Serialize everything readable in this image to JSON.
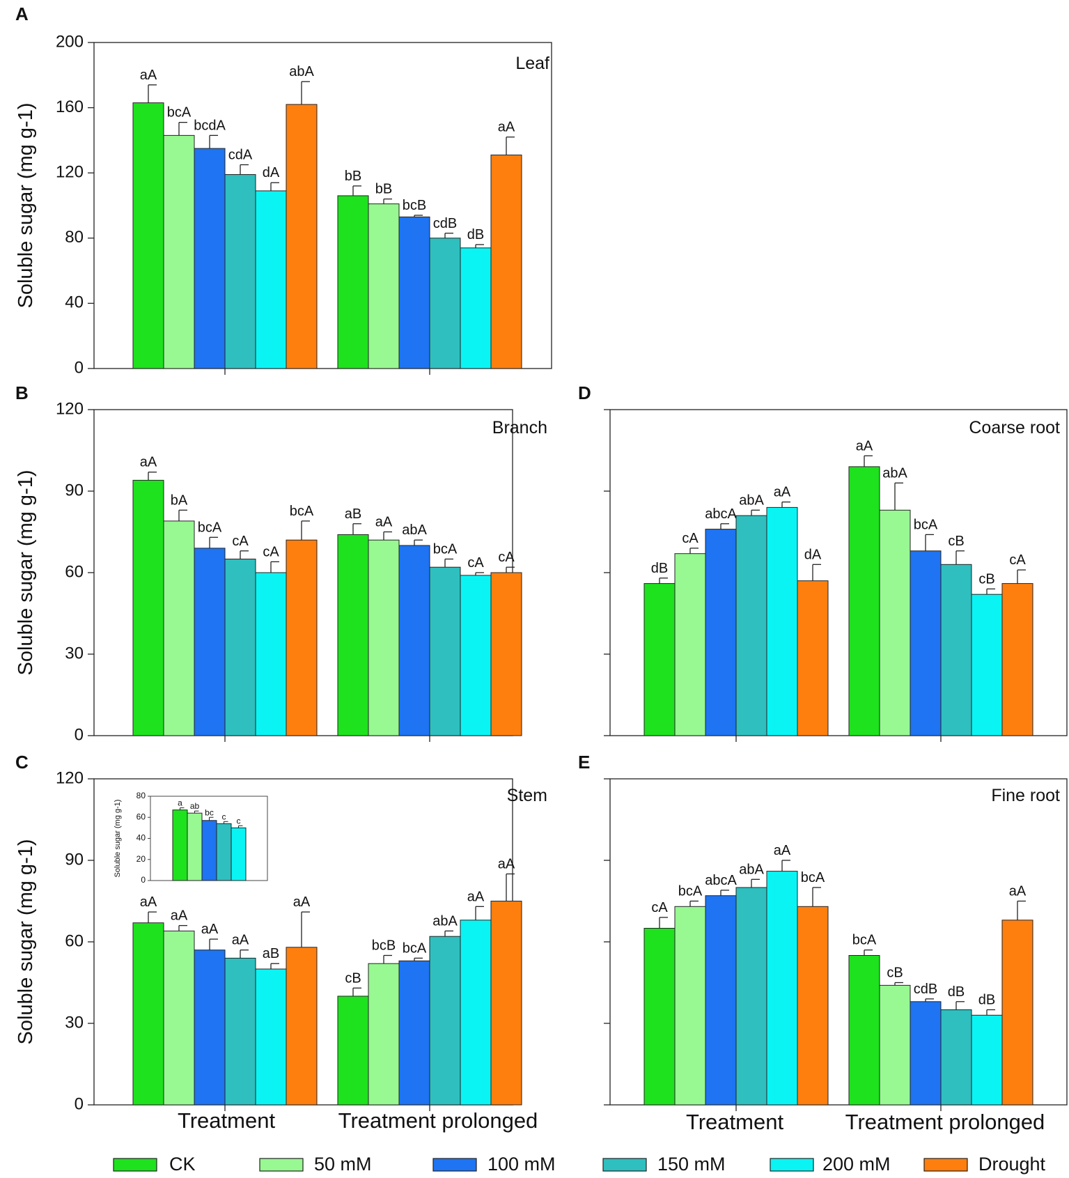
{
  "figure": {
    "x_categories": [
      "Treatment",
      "Treatment prolonged"
    ],
    "legend": [
      {
        "label": "CK",
        "color": "#1ee21e"
      },
      {
        "label": "50 mM",
        "color": "#98f892"
      },
      {
        "label": "100 mM",
        "color": "#1e74f2"
      },
      {
        "label": "150 mM",
        "color": "#2fbfbf"
      },
      {
        "label": "200 mM",
        "color": "#0bf4f4"
      },
      {
        "label": "Drought",
        "color": "#ff7f0e"
      }
    ]
  },
  "chart_data": [
    {
      "panel": "A",
      "title": "Leaf",
      "type": "bar",
      "ylabel": "Soluble sugar (mg g-1)",
      "ylim": [
        0,
        200
      ],
      "yticks": [
        0,
        40,
        80,
        120,
        160,
        200
      ],
      "categories": [
        "Treatment",
        "Treatment prolonged"
      ],
      "series": [
        {
          "name": "CK",
          "values": [
            163,
            106
          ],
          "errors": [
            11,
            6
          ],
          "letters": [
            "aA",
            "bB"
          ]
        },
        {
          "name": "50 mM",
          "values": [
            143,
            101
          ],
          "errors": [
            8,
            3
          ],
          "letters": [
            "bcA",
            "bB"
          ]
        },
        {
          "name": "100 mM",
          "values": [
            135,
            93
          ],
          "errors": [
            8,
            1
          ],
          "letters": [
            "bcdA",
            "bcB"
          ]
        },
        {
          "name": "150 mM",
          "values": [
            119,
            80
          ],
          "errors": [
            6,
            3
          ],
          "letters": [
            "cdA",
            "cdB"
          ]
        },
        {
          "name": "200 mM",
          "values": [
            109,
            74
          ],
          "errors": [
            5,
            2
          ],
          "letters": [
            "dA",
            "dB"
          ]
        },
        {
          "name": "Drought",
          "values": [
            162,
            131
          ],
          "errors": [
            14,
            11
          ],
          "letters": [
            "abA",
            "aA"
          ]
        }
      ]
    },
    {
      "panel": "B",
      "title": "Branch",
      "type": "bar",
      "ylabel": "Soluble sugar (mg g-1)",
      "ylim": [
        0,
        120
      ],
      "yticks": [
        0,
        30,
        60,
        90,
        120
      ],
      "categories": [
        "Treatment",
        "Treatment prolonged"
      ],
      "series": [
        {
          "name": "CK",
          "values": [
            94,
            74
          ],
          "errors": [
            3,
            4
          ],
          "letters": [
            "aA",
            "aB"
          ]
        },
        {
          "name": "50 mM",
          "values": [
            79,
            72
          ],
          "errors": [
            4,
            3
          ],
          "letters": [
            "bA",
            "aA"
          ]
        },
        {
          "name": "100 mM",
          "values": [
            69,
            70
          ],
          "errors": [
            4,
            2
          ],
          "letters": [
            "bcA",
            "abA"
          ]
        },
        {
          "name": "150 mM",
          "values": [
            65,
            62
          ],
          "errors": [
            3,
            3
          ],
          "letters": [
            "cA",
            "bcA"
          ]
        },
        {
          "name": "200 mM",
          "values": [
            60,
            59
          ],
          "errors": [
            4,
            1
          ],
          "letters": [
            "cA",
            "cA"
          ]
        },
        {
          "name": "Drought",
          "values": [
            72,
            60
          ],
          "errors": [
            7,
            2
          ],
          "letters": [
            "bcA",
            "cA"
          ]
        }
      ]
    },
    {
      "panel": "C",
      "title": "Stem",
      "type": "bar",
      "ylabel": "Soluble sugar (mg g-1)",
      "ylim": [
        0,
        120
      ],
      "yticks": [
        0,
        30,
        60,
        90,
        120
      ],
      "categories": [
        "Treatment",
        "Treatment prolonged"
      ],
      "series": [
        {
          "name": "CK",
          "values": [
            67,
            40
          ],
          "errors": [
            4,
            3
          ],
          "letters": [
            "aA",
            "cB"
          ]
        },
        {
          "name": "50 mM",
          "values": [
            64,
            52
          ],
          "errors": [
            2,
            3
          ],
          "letters": [
            "aA",
            "bcB"
          ]
        },
        {
          "name": "100 mM",
          "values": [
            57,
            53
          ],
          "errors": [
            4,
            1
          ],
          "letters": [
            "aA",
            "bcA"
          ]
        },
        {
          "name": "150 mM",
          "values": [
            54,
            62
          ],
          "errors": [
            3,
            2
          ],
          "letters": [
            "aA",
            "abA"
          ]
        },
        {
          "name": "200 mM",
          "values": [
            50,
            68
          ],
          "errors": [
            2,
            5
          ],
          "letters": [
            "aB",
            "aA"
          ]
        },
        {
          "name": "Drought",
          "values": [
            58,
            75
          ],
          "errors": [
            13,
            10
          ],
          "letters": [
            "aA",
            "aA"
          ]
        }
      ],
      "inset": {
        "ylabel": "Soluble sugar (mg g-1)",
        "ylim": [
          0,
          80
        ],
        "yticks": [
          0,
          20,
          40,
          60,
          80
        ],
        "series": [
          {
            "name": "CK",
            "value": 67,
            "error": 2,
            "letter": "a"
          },
          {
            "name": "50 mM",
            "value": 64,
            "error": 2,
            "letter": "ab"
          },
          {
            "name": "100 mM",
            "value": 57,
            "error": 3,
            "letter": "bc"
          },
          {
            "name": "150 mM",
            "value": 54,
            "error": 2,
            "letter": "c"
          },
          {
            "name": "200 mM",
            "value": 50,
            "error": 2,
            "letter": "c"
          }
        ]
      }
    },
    {
      "panel": "D",
      "title": "Coarse root",
      "type": "bar",
      "ylim": [
        0,
        120
      ],
      "yticks": [
        0,
        30,
        60,
        90,
        120
      ],
      "categories": [
        "Treatment",
        "Treatment prolonged"
      ],
      "series": [
        {
          "name": "CK",
          "values": [
            56,
            99
          ],
          "errors": [
            2,
            4
          ],
          "letters": [
            "dB",
            "aA"
          ]
        },
        {
          "name": "50 mM",
          "values": [
            67,
            83
          ],
          "errors": [
            2,
            10
          ],
          "letters": [
            "cA",
            "abA"
          ]
        },
        {
          "name": "100 mM",
          "values": [
            76,
            68
          ],
          "errors": [
            2,
            6
          ],
          "letters": [
            "abcA",
            "bcA"
          ]
        },
        {
          "name": "150 mM",
          "values": [
            81,
            63
          ],
          "errors": [
            2,
            5
          ],
          "letters": [
            "abA",
            "cB"
          ]
        },
        {
          "name": "200 mM",
          "values": [
            84,
            52
          ],
          "errors": [
            2,
            2
          ],
          "letters": [
            "aA",
            "cB"
          ]
        },
        {
          "name": "Drought",
          "values": [
            57,
            56
          ],
          "errors": [
            6,
            5
          ],
          "letters": [
            "dA",
            "cA"
          ]
        }
      ]
    },
    {
      "panel": "E",
      "title": "Fine root",
      "type": "bar",
      "ylim": [
        0,
        120
      ],
      "yticks": [
        0,
        30,
        60,
        90,
        120
      ],
      "categories": [
        "Treatment",
        "Treatment prolonged"
      ],
      "series": [
        {
          "name": "CK",
          "values": [
            65,
            55
          ],
          "errors": [
            4,
            2
          ],
          "letters": [
            "cA",
            "bcA"
          ]
        },
        {
          "name": "50 mM",
          "values": [
            73,
            44
          ],
          "errors": [
            2,
            1
          ],
          "letters": [
            "bcA",
            "cB"
          ]
        },
        {
          "name": "100 mM",
          "values": [
            77,
            38
          ],
          "errors": [
            2,
            1
          ],
          "letters": [
            "abcA",
            "cdB"
          ]
        },
        {
          "name": "150 mM",
          "values": [
            80,
            35
          ],
          "errors": [
            3,
            3
          ],
          "letters": [
            "abA",
            "dB"
          ]
        },
        {
          "name": "200 mM",
          "values": [
            86,
            33
          ],
          "errors": [
            4,
            2
          ],
          "letters": [
            "aA",
            "dB"
          ]
        },
        {
          "name": "Drought",
          "values": [
            73,
            68
          ],
          "errors": [
            7,
            7
          ],
          "letters": [
            "bcA",
            "aA"
          ]
        }
      ]
    }
  ]
}
